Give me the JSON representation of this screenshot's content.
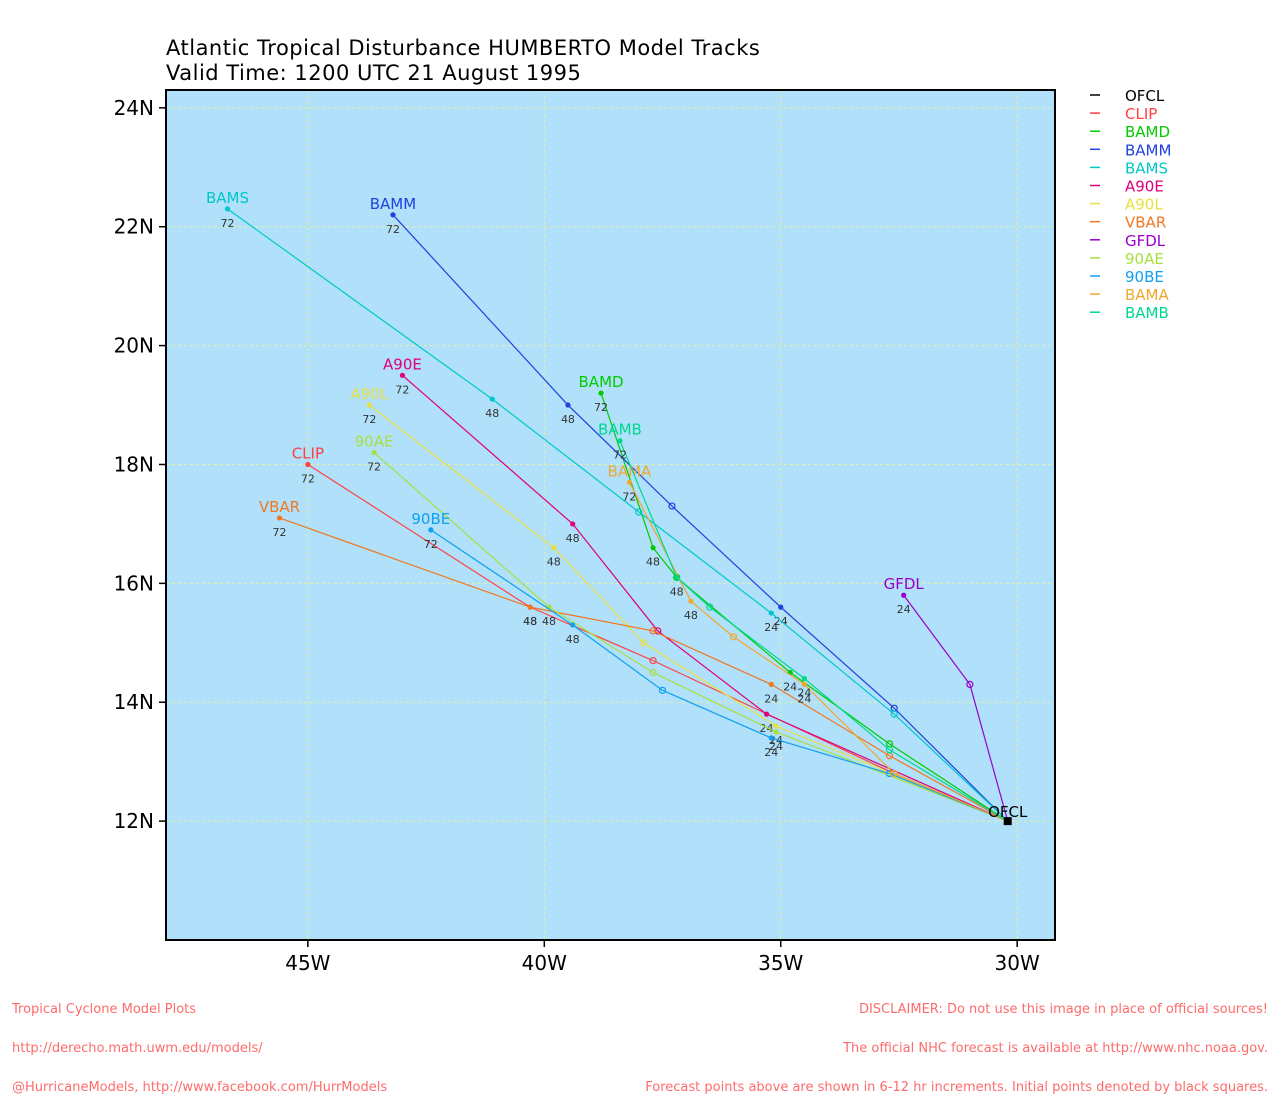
{
  "title_line1": "Atlantic Tropical Disturbance HUMBERTO Model Tracks",
  "title_line2": "Valid Time: 1200 UTC 21 August 1995",
  "footer_left": [
    "Tropical Cyclone Model Plots",
    "http://derecho.math.uwm.edu/models/",
    "@HurricaneModels, http://www.facebook.com/HurrModels"
  ],
  "footer_right": [
    "DISCLAIMER: Do not use this image in place of official sources!",
    "The official NHC forecast is available at http://www.nhc.noaa.gov.",
    "Forecast points above are shown in 6-12 hr increments. Initial points denoted by black squares."
  ],
  "colors": {
    "ocean": "#b0e0fa",
    "grid": "#e6f0a0",
    "axis": "#000000"
  },
  "chart_data": {
    "type": "line",
    "xlim": [
      -48,
      -29.2
    ],
    "ylim": [
      10,
      24.3
    ],
    "x_ticks": [
      -45,
      -40,
      -35,
      -30
    ],
    "x_tick_labels": [
      "45W",
      "40W",
      "35W",
      "30W"
    ],
    "y_ticks": [
      12,
      14,
      16,
      18,
      20,
      22,
      24
    ],
    "y_tick_labels": [
      "12N",
      "14N",
      "16N",
      "18N",
      "20N",
      "22N",
      "24N"
    ],
    "grid": true,
    "legend_position": "right",
    "origin": [
      -30.2,
      12.0
    ],
    "series": [
      {
        "name": "OFCL",
        "color": "#000000",
        "points": [],
        "labels": []
      },
      {
        "name": "CLIP",
        "color": "#ff4040",
        "points": [
          [
            -32.6,
            12.8
          ],
          [
            -37.7,
            14.7
          ],
          [
            -40.3,
            15.6
          ],
          [
            -45.0,
            18.0
          ]
        ],
        "labels": [
          null,
          null,
          "48",
          "72"
        ]
      },
      {
        "name": "BAMD",
        "color": "#00cc00",
        "points": [
          [
            -32.7,
            13.3
          ],
          [
            -34.8,
            14.5
          ],
          [
            -37.2,
            16.1
          ],
          [
            -37.7,
            16.6
          ],
          [
            -38.8,
            19.2
          ]
        ],
        "labels": [
          null,
          "24",
          null,
          "48",
          "72"
        ]
      },
      {
        "name": "BAMM",
        "color": "#2040e0",
        "points": [
          [
            -32.6,
            13.9
          ],
          [
            -35.0,
            15.6
          ],
          [
            -37.3,
            17.3
          ],
          [
            -39.5,
            19.0
          ],
          [
            -43.2,
            22.2
          ]
        ],
        "labels": [
          null,
          "24",
          null,
          "48",
          "72"
        ]
      },
      {
        "name": "BAMS",
        "color": "#00c8c8",
        "points": [
          [
            -32.6,
            13.8
          ],
          [
            -35.2,
            15.5
          ],
          [
            -38.0,
            17.2
          ],
          [
            -41.1,
            19.1
          ],
          [
            -46.7,
            22.3
          ]
        ],
        "labels": [
          null,
          "24",
          null,
          "48",
          "72"
        ]
      },
      {
        "name": "A90E",
        "color": "#e0007a",
        "points": [
          [
            -35.3,
            13.8
          ],
          [
            -37.6,
            15.2
          ],
          [
            -39.4,
            17.0
          ],
          [
            -43.0,
            19.5
          ]
        ],
        "labels": [
          "24",
          null,
          "48",
          "72"
        ]
      },
      {
        "name": "A90L",
        "color": "#e8e040",
        "points": [
          [
            -35.1,
            13.6
          ],
          [
            -37.9,
            15.0
          ],
          [
            -39.8,
            16.6
          ],
          [
            -43.7,
            19.0
          ]
        ],
        "labels": [
          "24",
          null,
          "48",
          "72"
        ]
      },
      {
        "name": "VBAR",
        "color": "#f07820",
        "points": [
          [
            -32.7,
            13.1
          ],
          [
            -35.2,
            14.3
          ],
          [
            -37.7,
            15.2
          ],
          [
            -40.3,
            15.6
          ],
          [
            -45.6,
            17.1
          ]
        ],
        "labels": [
          null,
          "24",
          null,
          "48",
          "72"
        ]
      },
      {
        "name": "GFDL",
        "color": "#9900cc",
        "points": [
          [
            -31.0,
            14.3
          ],
          [
            -32.4,
            15.8
          ]
        ],
        "labels": [
          null,
          "24"
        ]
      },
      {
        "name": "90AE",
        "color": "#a8e040",
        "points": [
          [
            -35.1,
            13.5
          ],
          [
            -37.7,
            14.5
          ],
          [
            -39.9,
            15.6
          ],
          [
            -43.6,
            18.2
          ]
        ],
        "labels": [
          "24",
          null,
          "48",
          "72"
        ]
      },
      {
        "name": "90BE",
        "color": "#10a0f0",
        "points": [
          [
            -32.7,
            12.8
          ],
          [
            -35.2,
            13.4
          ],
          [
            -37.5,
            14.2
          ],
          [
            -39.4,
            15.3
          ],
          [
            -42.4,
            16.9
          ]
        ],
        "labels": [
          null,
          "24",
          null,
          "48",
          "72"
        ]
      },
      {
        "name": "BAMA",
        "color": "#f0a830",
        "points": [
          [
            -32.6,
            12.8
          ],
          [
            -34.5,
            14.3
          ],
          [
            -36.0,
            15.1
          ],
          [
            -36.9,
            15.7
          ],
          [
            -38.2,
            17.7
          ]
        ],
        "labels": [
          null,
          "24",
          null,
          "48",
          "72"
        ]
      },
      {
        "name": "BAMB",
        "color": "#00d890",
        "points": [
          [
            -32.7,
            13.2
          ],
          [
            -34.5,
            14.4
          ],
          [
            -36.5,
            15.6
          ],
          [
            -37.2,
            16.1
          ],
          [
            -38.4,
            18.4
          ]
        ],
        "labels": [
          null,
          "24",
          null,
          "48",
          "72"
        ]
      }
    ]
  }
}
